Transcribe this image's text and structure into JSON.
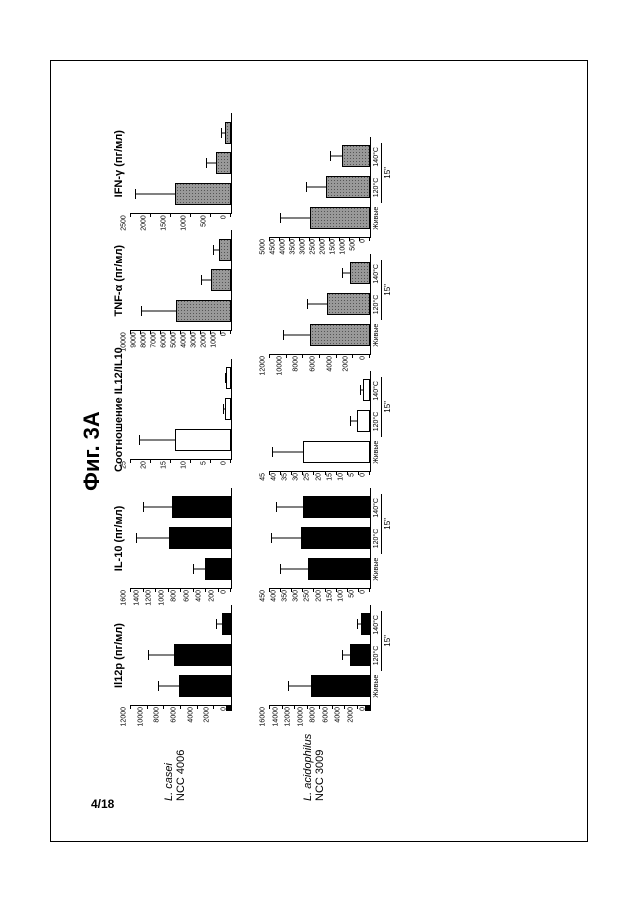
{
  "page_number": "4/18",
  "figure_title": "Фиг. 3A",
  "column_titles": [
    "Il12p (пг/мл)",
    "IL-10 (пг/мл)",
    "Соотношение IL12/IL10",
    "TNF-α (пг/мл)",
    "IFN-γ (пг/мл)"
  ],
  "x_labels": [
    "Живые",
    "120°C",
    "140°C"
  ],
  "duration_label": "15\"",
  "colors": {
    "black": "#000000",
    "white": "#ffffff",
    "gray": "#888888",
    "border": "#000000",
    "background": "#ffffff"
  },
  "typography": {
    "title_fontsize": 22,
    "coltitle_fontsize": 11,
    "tick_fontsize": 7,
    "rowlabel_fontsize": 11
  },
  "rows": [
    {
      "label_species": "L. casei",
      "label_code": "NCC 4006",
      "charts": [
        {
          "type": "bar",
          "fill": "black",
          "ylim": [
            0,
            12000
          ],
          "ytick_step": 2000,
          "values": [
            6200,
            6800,
            1100
          ],
          "errors": [
            2500,
            3000,
            600
          ],
          "left_black_bar_height": 6
        },
        {
          "type": "bar",
          "fill": "black",
          "ylim": [
            0,
            1600
          ],
          "ytick_step": 200,
          "values": [
            420,
            1000,
            950
          ],
          "errors": [
            180,
            500,
            450
          ]
        },
        {
          "type": "bar",
          "fill": "white",
          "ylim": [
            0,
            25
          ],
          "ytick_step": 5,
          "values": [
            14,
            1.5,
            1.2
          ],
          "errors": [
            9,
            0.5,
            0.4
          ]
        },
        {
          "type": "bar",
          "fill": "gray",
          "ylim": [
            0,
            10000
          ],
          "ytick_step": 1000,
          "values": [
            5500,
            2000,
            1200
          ],
          "errors": [
            3500,
            1000,
            600
          ]
        },
        {
          "type": "bar",
          "fill": "gray",
          "ylim": [
            0,
            2500
          ],
          "ytick_step": 500,
          "values": [
            1400,
            380,
            150
          ],
          "errors": [
            1000,
            250,
            100
          ]
        }
      ]
    },
    {
      "label_species": "L. acidophilus",
      "label_code": "NCC 3009",
      "charts": [
        {
          "type": "bar",
          "fill": "black",
          "ylim": [
            0,
            16000
          ],
          "ytick_step": 2000,
          "values": [
            9500,
            3200,
            1400
          ],
          "errors": [
            3500,
            1200,
            600
          ],
          "left_black_bar_height": 6
        },
        {
          "type": "bar",
          "fill": "black",
          "ylim": [
            0,
            450
          ],
          "ytick_step": 50,
          "values": [
            280,
            310,
            300
          ],
          "errors": [
            120,
            130,
            120
          ]
        },
        {
          "type": "bar",
          "fill": "white",
          "ylim": [
            0,
            45
          ],
          "ytick_step": 5,
          "values": [
            30,
            6,
            3
          ],
          "errors": [
            14,
            3,
            1.5
          ]
        },
        {
          "type": "bar",
          "fill": "gray",
          "ylim": [
            0,
            12000
          ],
          "ytick_step": 2000,
          "values": [
            7200,
            5200,
            2400
          ],
          "errors": [
            3200,
            2400,
            1000
          ]
        },
        {
          "type": "bar",
          "fill": "gray",
          "ylim": [
            0,
            5000
          ],
          "ytick_step": 500,
          "values": [
            3000,
            2200,
            1400
          ],
          "errors": [
            1500,
            1000,
            600
          ]
        }
      ]
    }
  ]
}
